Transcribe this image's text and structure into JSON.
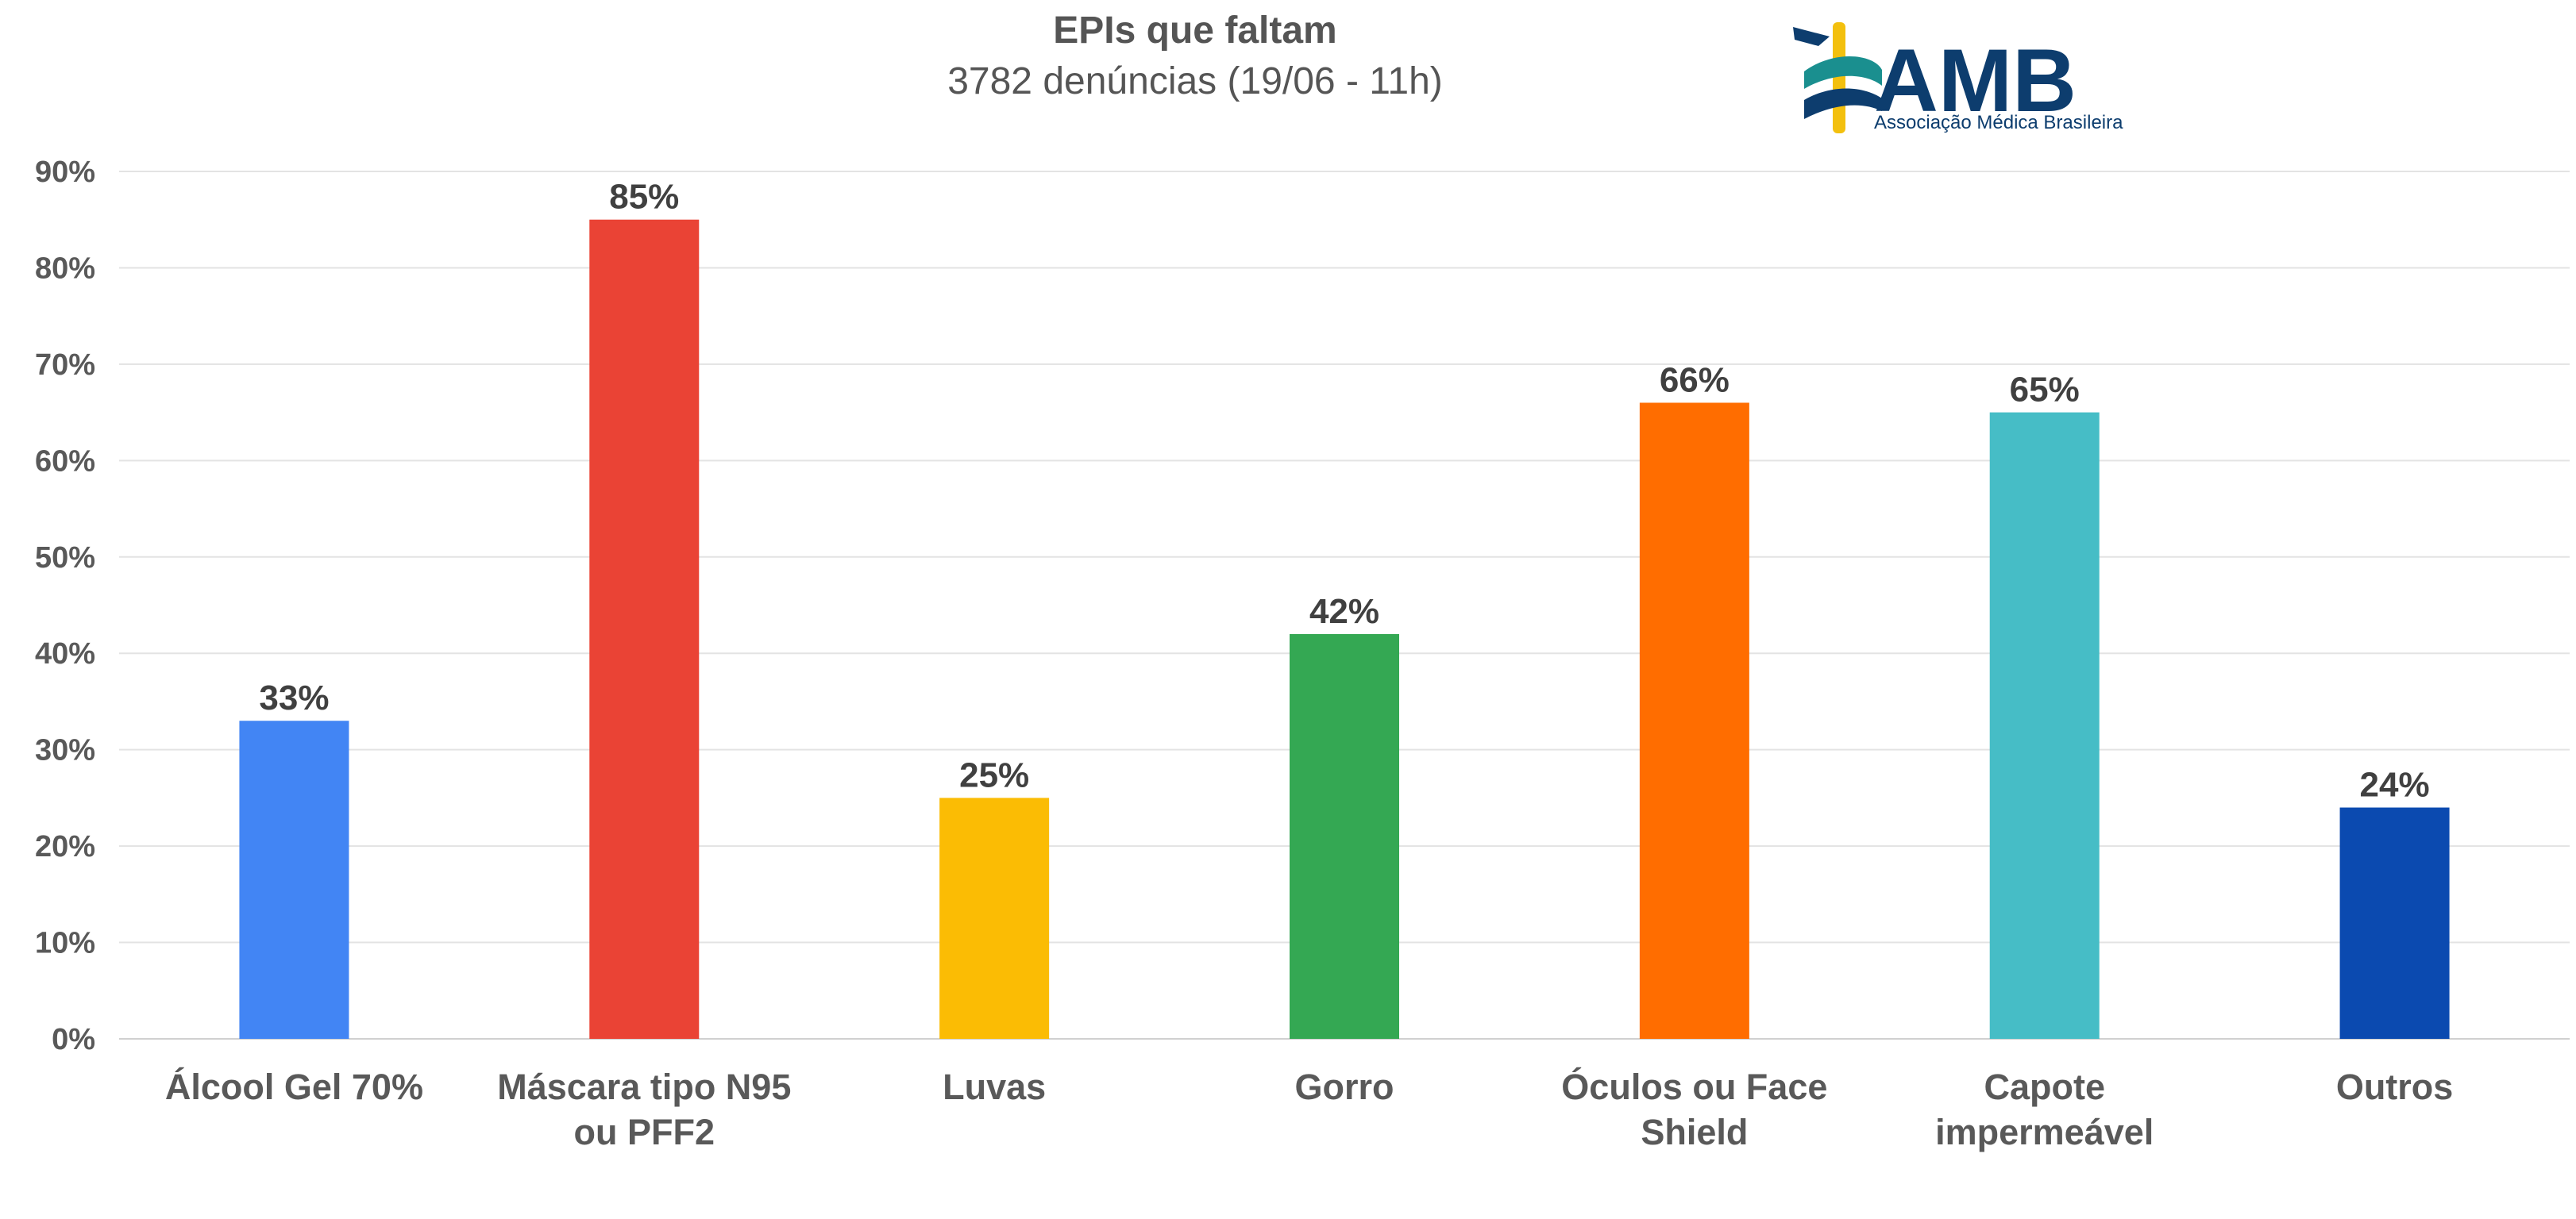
{
  "logo": {
    "name": "AMB",
    "tagline": "Associação Médica Brasileira",
    "colors": {
      "blue": "#0d3d6e",
      "teal": "#1a8f8f",
      "yellow": "#f3c00e"
    }
  },
  "chart_data": {
    "type": "bar",
    "title": "EPIs que faltam",
    "subtitle": "3782 denúncias (19/06 - 11h)",
    "categories": [
      [
        "Álcool Gel 70%"
      ],
      [
        "Máscara tipo N95",
        "ou PFF2"
      ],
      [
        "Luvas"
      ],
      [
        "Gorro"
      ],
      [
        "Óculos ou Face",
        "Shield"
      ],
      [
        "Capote",
        "impermeável"
      ],
      [
        "Outros"
      ]
    ],
    "values": [
      33,
      85,
      25,
      42,
      66,
      65,
      24
    ],
    "value_labels": [
      "33%",
      "85%",
      "25%",
      "42%",
      "66%",
      "65%",
      "24%"
    ],
    "bar_colors": [
      "#4285f4",
      "#ea4335",
      "#fbbc04",
      "#34a853",
      "#ff6d00",
      "#46bdc6",
      "#0b4ab0"
    ],
    "yticks": [
      0,
      10,
      20,
      30,
      40,
      50,
      60,
      70,
      80,
      90
    ],
    "ytick_labels": [
      "0%",
      "10%",
      "20%",
      "30%",
      "40%",
      "50%",
      "60%",
      "70%",
      "80%",
      "90%"
    ],
    "ylim": [
      0,
      90
    ],
    "grid": true,
    "legend": "none",
    "xlabel": "",
    "ylabel": ""
  }
}
